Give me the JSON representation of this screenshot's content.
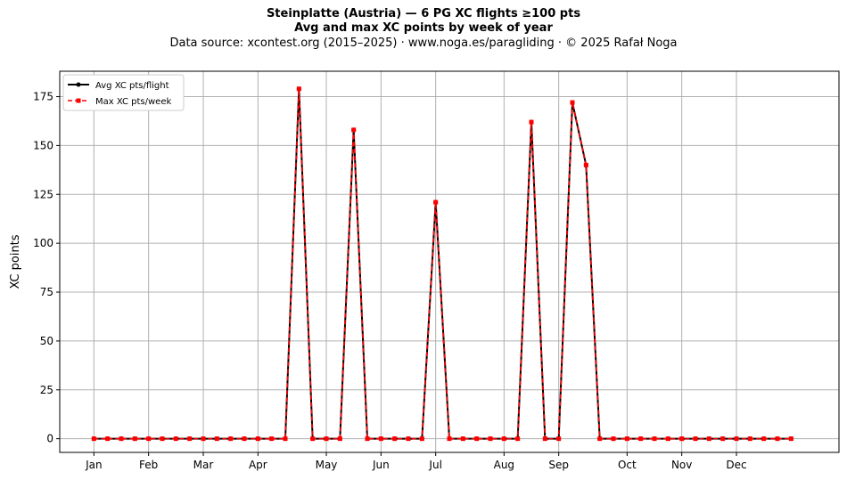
{
  "chart_data": {
    "type": "line",
    "title": "Steinplatte (Austria)  —  6 PG XC flights ≥100 pts",
    "subtitle": "Avg and max XC points by week of year",
    "source_note": "Data source: xcontest.org (2015–2025)  ·  www.noga.es/paragliding  ·  © 2025 Rafał Noga",
    "xlabel": "",
    "ylabel": "XC points",
    "ylim": [
      -7,
      188
    ],
    "yticks": [
      0,
      25,
      50,
      75,
      100,
      125,
      150,
      175
    ],
    "xlim": [
      -2.5,
      54.5
    ],
    "xticks": [
      {
        "label": "Jan",
        "week": 0
      },
      {
        "label": "Feb",
        "week": 4
      },
      {
        "label": "Mar",
        "week": 8
      },
      {
        "label": "Apr",
        "week": 12
      },
      {
        "label": "May",
        "week": 17
      },
      {
        "label": "Jun",
        "week": 21
      },
      {
        "label": "Jul",
        "week": 25
      },
      {
        "label": "Aug",
        "week": 30
      },
      {
        "label": "Sep",
        "week": 34
      },
      {
        "label": "Oct",
        "week": 39
      },
      {
        "label": "Nov",
        "week": 43
      },
      {
        "label": "Dec",
        "week": 47
      }
    ],
    "grid": true,
    "legend_position": "top-left",
    "x": [
      0,
      1,
      2,
      3,
      4,
      5,
      6,
      7,
      8,
      9,
      10,
      11,
      12,
      13,
      14,
      15,
      16,
      17,
      18,
      19,
      20,
      21,
      22,
      23,
      24,
      25,
      26,
      27,
      28,
      29,
      30,
      31,
      32,
      33,
      34,
      35,
      36,
      37,
      38,
      39,
      40,
      41,
      42,
      43,
      44,
      45,
      46,
      47,
      48,
      49,
      50,
      51
    ],
    "series": [
      {
        "name": "Avg XC pts/flight",
        "color": "#000000",
        "values": [
          0,
          0,
          0,
          0,
          0,
          0,
          0,
          0,
          0,
          0,
          0,
          0,
          0,
          0,
          0,
          179,
          0,
          0,
          0,
          158,
          0,
          0,
          0,
          0,
          0,
          121,
          0,
          0,
          0,
          0,
          0,
          0,
          162,
          0,
          0,
          172,
          140,
          0,
          0,
          0,
          0,
          0,
          0,
          0,
          0,
          0,
          0,
          0,
          0,
          0,
          0,
          0
        ]
      },
      {
        "name": "Max XC pts/week",
        "color": "#ff0000",
        "values": [
          0,
          0,
          0,
          0,
          0,
          0,
          0,
          0,
          0,
          0,
          0,
          0,
          0,
          0,
          0,
          179,
          0,
          0,
          0,
          158,
          0,
          0,
          0,
          0,
          0,
          121,
          0,
          0,
          0,
          0,
          0,
          0,
          162,
          0,
          0,
          172,
          140,
          0,
          0,
          0,
          0,
          0,
          0,
          0,
          0,
          0,
          0,
          0,
          0,
          0,
          0,
          0
        ]
      }
    ]
  }
}
